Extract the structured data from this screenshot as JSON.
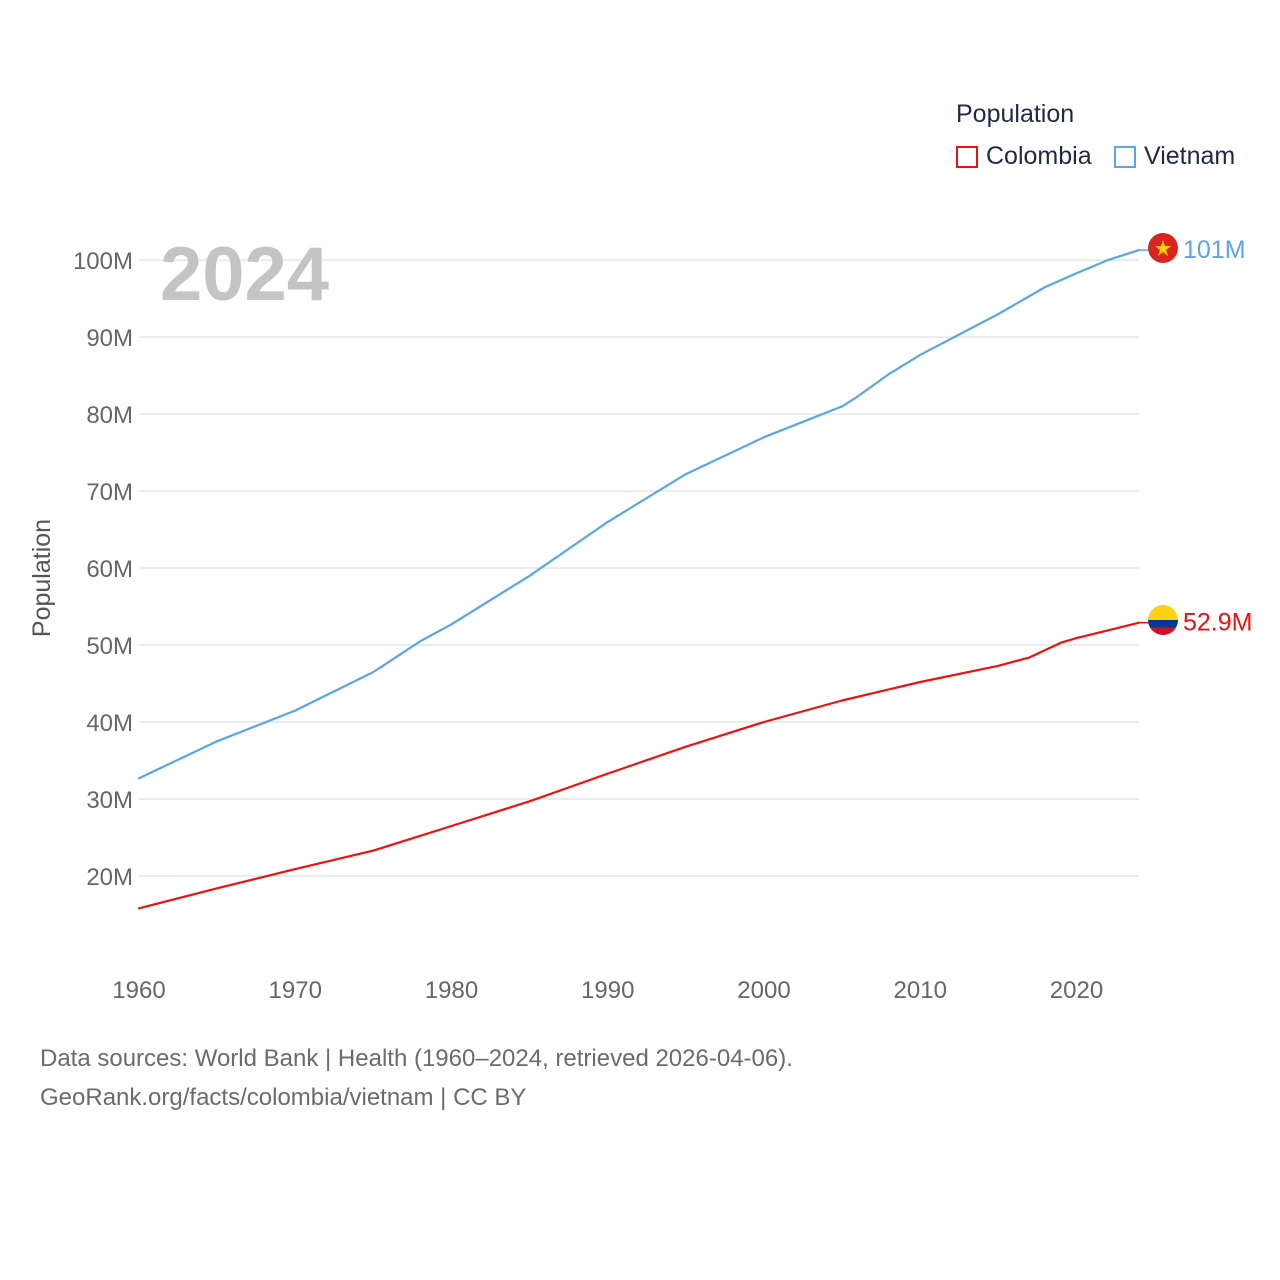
{
  "legend": {
    "title": "Population",
    "items": [
      {
        "label": "Colombia",
        "color": "#ee1111"
      },
      {
        "label": "Vietnam",
        "color": "#5aa5e6"
      }
    ]
  },
  "chart_data": {
    "type": "line",
    "year_label": "2024",
    "ylabel": "Population",
    "xlim": [
      1960,
      2024
    ],
    "ylim": [
      10000000,
      103000000
    ],
    "x_ticks": [
      1960,
      1970,
      1980,
      1990,
      2000,
      2010,
      2020
    ],
    "x_tick_labels": [
      "1960",
      "1970",
      "1980",
      "1990",
      "2000",
      "2010",
      "2020"
    ],
    "y_ticks": [
      20000000,
      30000000,
      40000000,
      50000000,
      60000000,
      70000000,
      80000000,
      90000000,
      100000000
    ],
    "y_tick_labels": [
      "20M",
      "30M",
      "40M",
      "50M",
      "60M",
      "70M",
      "80M",
      "90M",
      "100M"
    ],
    "series": [
      {
        "name": "Vietnam",
        "color": "#5aa5e6",
        "end_label": "101M",
        "flag": "vietnam-flag",
        "points": [
          [
            1960,
            32700000
          ],
          [
            1965,
            37500000
          ],
          [
            1970,
            41500000
          ],
          [
            1975,
            46500000
          ],
          [
            1978,
            50500000
          ],
          [
            1980,
            52700000
          ],
          [
            1985,
            59000000
          ],
          [
            1990,
            66000000
          ],
          [
            1995,
            72200000
          ],
          [
            2000,
            77000000
          ],
          [
            2005,
            81000000
          ],
          [
            2006,
            82300000
          ],
          [
            2008,
            85200000
          ],
          [
            2010,
            87700000
          ],
          [
            2015,
            93000000
          ],
          [
            2018,
            96500000
          ],
          [
            2020,
            98300000
          ],
          [
            2022,
            100000000
          ],
          [
            2024,
            101300000
          ]
        ]
      },
      {
        "name": "Colombia",
        "color": "#ee1111",
        "end_label": "52.9M",
        "flag": "colombia-flag",
        "points": [
          [
            1960,
            15800000
          ],
          [
            1965,
            18400000
          ],
          [
            1970,
            20900000
          ],
          [
            1975,
            23300000
          ],
          [
            1980,
            26500000
          ],
          [
            1985,
            29700000
          ],
          [
            1990,
            33300000
          ],
          [
            1995,
            36800000
          ],
          [
            2000,
            40000000
          ],
          [
            2005,
            42800000
          ],
          [
            2010,
            45200000
          ],
          [
            2015,
            47300000
          ],
          [
            2017,
            48400000
          ],
          [
            2019,
            50300000
          ],
          [
            2020,
            50900000
          ],
          [
            2022,
            51900000
          ],
          [
            2024,
            52900000
          ]
        ]
      }
    ]
  },
  "source": {
    "line1": "Data sources: World Bank | Health (1960–2024, retrieved 2026-04-06).",
    "line2": "GeoRank.org/facts/colombia/vietnam | CC BY"
  }
}
